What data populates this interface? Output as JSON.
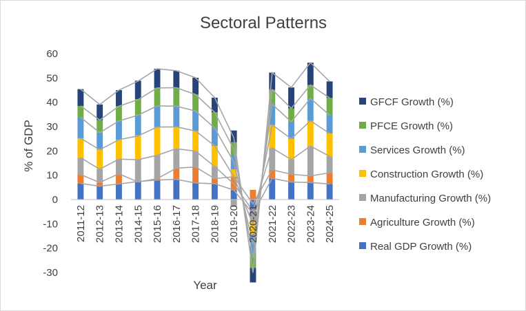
{
  "chart_data": {
    "type": "bar",
    "stacked": true,
    "title": "Sectoral Patterns",
    "xlabel": "Year",
    "ylabel": "% of GDP",
    "ylim": [
      -30,
      60
    ],
    "yticks": [
      -30,
      -20,
      -10,
      0,
      10,
      20,
      30,
      40,
      50,
      60
    ],
    "grid": false,
    "legend_position": "right",
    "categories": [
      "2011-12",
      "2012-13",
      "2013-14",
      "2014-15",
      "2015-16",
      "2016-17",
      "2017-18",
      "2018-19",
      "2019-20",
      "2020-21",
      "2021-22",
      "2022-23",
      "2023-24",
      "2024-25"
    ],
    "series": [
      {
        "name": "Real GDP Growth (%)",
        "color": "#4472C4",
        "values": [
          6.6,
          5.5,
          6.4,
          7.4,
          8.0,
          8.3,
          6.8,
          6.5,
          3.9,
          -5.8,
          8.7,
          7.2,
          7.0,
          6.4
        ]
      },
      {
        "name": "Agriculture Growth (%)",
        "color": "#ED7D31",
        "values": [
          3.7,
          1.5,
          4.2,
          -0.2,
          0.6,
          4.6,
          6.6,
          2.1,
          5.5,
          4.0,
          3.5,
          3.2,
          2.7,
          4.6
        ]
      },
      {
        "name": "Manufacturing Growth (%)",
        "color": "#A5A5A5",
        "values": [
          6.9,
          5.5,
          6.0,
          9.2,
          9.6,
          8.0,
          6.5,
          5.0,
          -3.0,
          -3.0,
          9.0,
          6.0,
          12.3,
          6.8
        ]
      },
      {
        "name": "Construction Growth (%)",
        "color": "#FFC000",
        "values": [
          8.0,
          8.0,
          8.0,
          9.8,
          11.6,
          9.0,
          8.3,
          8.5,
          3.0,
          -5.5,
          9.5,
          8.6,
          10.4,
          9.4
        ]
      },
      {
        "name": "Services Growth (%)",
        "color": "#5B9BD5",
        "values": [
          8.6,
          7.0,
          7.7,
          8.5,
          8.7,
          8.5,
          8.2,
          7.3,
          6.0,
          -8.0,
          8.5,
          7.0,
          9.2,
          7.5
        ]
      },
      {
        "name": "PFCE Growth (%)",
        "color": "#70AD47",
        "values": [
          4.7,
          5.2,
          6.1,
          6.4,
          7.4,
          7.6,
          6.8,
          6.5,
          5.2,
          -5.8,
          6.0,
          5.5,
          5.5,
          7.1
        ]
      },
      {
        "name": "GFCF Growth (%)",
        "color": "#264478",
        "values": [
          6.9,
          6.4,
          6.6,
          7.6,
          7.9,
          7.0,
          6.9,
          6.0,
          4.8,
          -6.0,
          7.0,
          8.6,
          9.2,
          6.8
        ]
      }
    ]
  }
}
